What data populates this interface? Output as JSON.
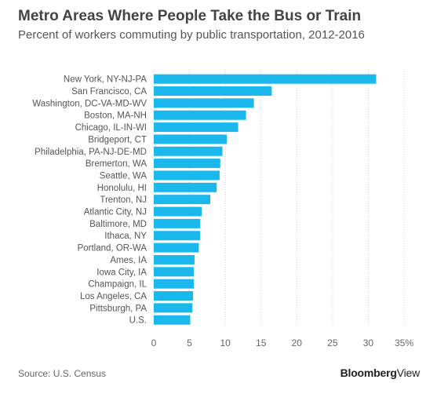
{
  "header": {
    "title": "Metro Areas Where People Take the Bus or Train",
    "subtitle": "Percent of workers commuting by public transportation, 2012-2016"
  },
  "footer": {
    "source": "Source: U.S. Census",
    "brand_bold": "Bloomberg",
    "brand_regular": "View"
  },
  "colors": {
    "bar": "#1ab8ec",
    "grid": "#cccccc",
    "text": "#555555"
  },
  "chart_data": {
    "type": "bar",
    "orientation": "horizontal",
    "title": "Metro Areas Where People Take the Bus or Train",
    "subtitle": "Percent of workers commuting by public transportation, 2012-2016",
    "xlabel": "",
    "ylabel": "",
    "xlim": [
      0,
      35
    ],
    "ticks": [
      0,
      5,
      10,
      15,
      20,
      25,
      30,
      35
    ],
    "tick_labels": [
      "0",
      "5",
      "10",
      "15",
      "20",
      "25",
      "30",
      "35%"
    ],
    "grid": true,
    "categories": [
      "New York, NY-NJ-PA",
      "San Francisco, CA",
      "Washington, DC-VA-MD-WV",
      "Boston, MA-NH",
      "Chicago, IL-IN-WI",
      "Bridgeport, CT",
      "Philadelphia, PA-NJ-DE-MD",
      "Bremerton, WA",
      "Seattle, WA",
      "Honolulu, HI",
      "Trenton, NJ",
      "Atlantic City, NJ",
      "Baltimore, MD",
      "Ithaca, NY",
      "Portland, OR-WA",
      "Ames, IA",
      "Iowa City, IA",
      "Champaign, IL",
      "Los Angeles, CA",
      "Pittsburgh, PA",
      "U.S."
    ],
    "values": [
      31.1,
      16.5,
      14.0,
      12.9,
      11.8,
      10.2,
      9.6,
      9.3,
      9.2,
      8.8,
      7.9,
      6.7,
      6.5,
      6.5,
      6.3,
      5.7,
      5.6,
      5.6,
      5.5,
      5.4,
      5.1
    ]
  }
}
